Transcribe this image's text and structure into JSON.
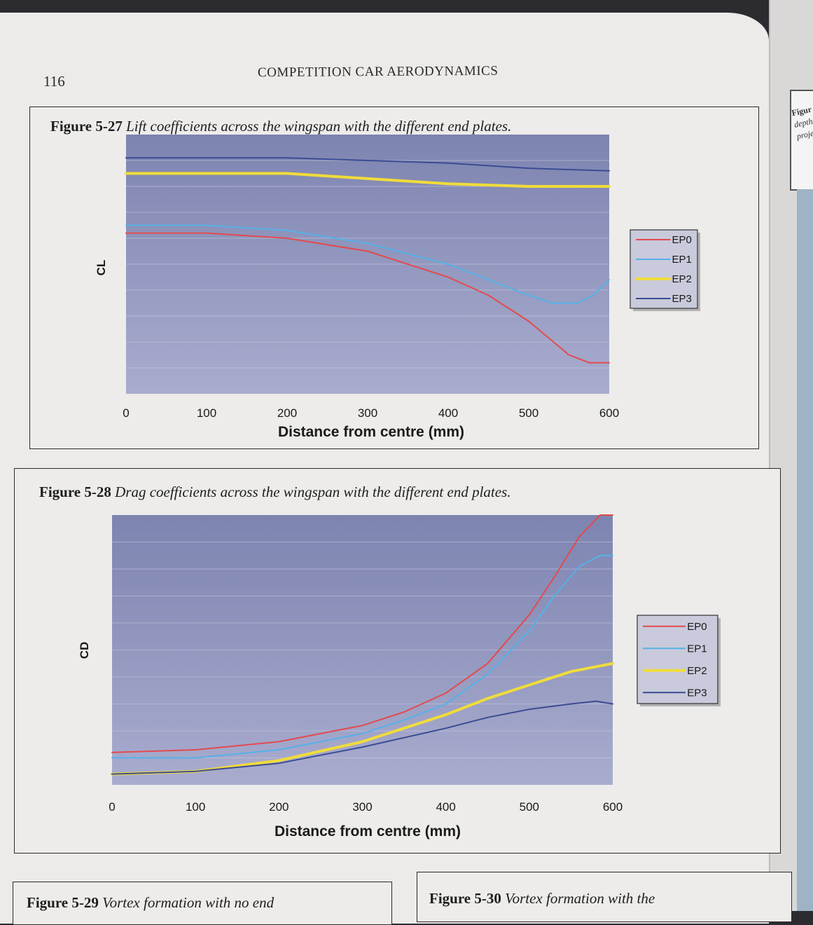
{
  "page": {
    "number": "116",
    "running_head": "COMPETITION CAR AERODYNAMICS"
  },
  "figures": [
    {
      "number": "Figure 5-27",
      "caption": "Lift coefficients across the wingspan with the different end plates."
    },
    {
      "number": "Figure 5-28",
      "caption": "Drag coefficients across the wingspan with the different end plates."
    },
    {
      "number": "Figure 5-29",
      "caption": "Vortex formation with no end"
    },
    {
      "number": "Figure 5-30",
      "caption": "Vortex formation with the"
    }
  ],
  "next_page_peek": {
    "bold": "Figur",
    "lines": [
      "depth",
      "proje"
    ]
  },
  "chart_data": [
    {
      "type": "line",
      "title": "",
      "xlabel": "Distance from centre (mm)",
      "ylabel": "CL",
      "xlim": [
        0,
        600
      ],
      "ylim": [
        0,
        1
      ],
      "x_ticks": [
        0,
        100,
        200,
        300,
        400,
        500,
        600
      ],
      "grid": true,
      "legend": "right",
      "colors": {
        "plot_bg_top": "#7d84b0",
        "plot_bg_bottom": "#a9acce",
        "grid": "#c9cbe0"
      },
      "series": [
        {
          "name": "EP0",
          "color": "#e34a4e",
          "width": 2,
          "x": [
            0,
            100,
            200,
            300,
            400,
            450,
            500,
            550,
            575,
            600
          ],
          "y": [
            0.62,
            0.62,
            0.6,
            0.55,
            0.45,
            0.38,
            0.28,
            0.15,
            0.12,
            0.12
          ]
        },
        {
          "name": "EP1",
          "color": "#56b1e8",
          "width": 2,
          "x": [
            0,
            100,
            200,
            300,
            400,
            450,
            500,
            530,
            560,
            580,
            600
          ],
          "y": [
            0.65,
            0.65,
            0.63,
            0.58,
            0.5,
            0.44,
            0.38,
            0.35,
            0.35,
            0.38,
            0.44
          ]
        },
        {
          "name": "EP2",
          "color": "#f0dc3a",
          "width": 4,
          "x": [
            0,
            100,
            200,
            300,
            400,
            500,
            600
          ],
          "y": [
            0.85,
            0.85,
            0.85,
            0.83,
            0.81,
            0.8,
            0.8
          ]
        },
        {
          "name": "EP3",
          "color": "#3b4c94",
          "width": 2,
          "x": [
            0,
            100,
            200,
            300,
            400,
            500,
            600
          ],
          "y": [
            0.91,
            0.91,
            0.91,
            0.9,
            0.89,
            0.87,
            0.86
          ]
        }
      ]
    },
    {
      "type": "line",
      "title": "",
      "xlabel": "Distance from centre (mm)",
      "ylabel": "CD",
      "xlim": [
        0,
        600
      ],
      "ylim": [
        0,
        1
      ],
      "x_ticks": [
        0,
        100,
        200,
        300,
        400,
        500,
        600
      ],
      "grid": true,
      "legend": "right",
      "colors": {
        "plot_bg_top": "#7d84b0",
        "plot_bg_bottom": "#a9acce",
        "grid": "#c9cbe0"
      },
      "series": [
        {
          "name": "EP0",
          "color": "#e34a4e",
          "width": 2,
          "x": [
            0,
            100,
            200,
            300,
            350,
            400,
            450,
            500,
            530,
            560,
            585,
            600
          ],
          "y": [
            0.12,
            0.13,
            0.16,
            0.22,
            0.27,
            0.34,
            0.45,
            0.63,
            0.77,
            0.92,
            1.0,
            1.0
          ]
        },
        {
          "name": "EP1",
          "color": "#56b1e8",
          "width": 2,
          "x": [
            0,
            100,
            200,
            300,
            350,
            400,
            450,
            500,
            530,
            560,
            585,
            600
          ],
          "y": [
            0.1,
            0.1,
            0.13,
            0.19,
            0.24,
            0.3,
            0.41,
            0.57,
            0.7,
            0.81,
            0.85,
            0.85
          ]
        },
        {
          "name": "EP2",
          "color": "#f0dc3a",
          "width": 4,
          "x": [
            0,
            100,
            200,
            300,
            400,
            450,
            500,
            550,
            600
          ],
          "y": [
            0.04,
            0.05,
            0.09,
            0.16,
            0.26,
            0.32,
            0.37,
            0.42,
            0.45
          ]
        },
        {
          "name": "EP3",
          "color": "#3b4c94",
          "width": 2,
          "x": [
            0,
            100,
            200,
            300,
            400,
            450,
            500,
            550,
            580,
            600
          ],
          "y": [
            0.04,
            0.05,
            0.08,
            0.14,
            0.21,
            0.25,
            0.28,
            0.3,
            0.31,
            0.3
          ]
        }
      ]
    }
  ]
}
